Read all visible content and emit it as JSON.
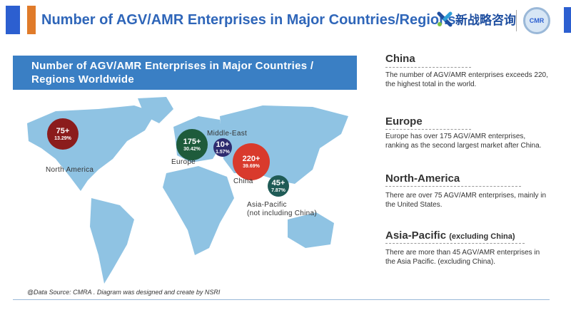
{
  "header": {
    "title": "Number of AGV/AMR Enterprises in Major Countries/Regions",
    "logo_text": "新战略咨询",
    "badge_text": "CMR"
  },
  "banner": {
    "line1": "Number of AGV/AMR Enterprises in Major Countries /",
    "line2": "Regions Worldwide"
  },
  "map": {
    "regions": [
      {
        "name": "North America",
        "count": "75+",
        "share": "13.29%",
        "color": "#8b1c1c"
      },
      {
        "name": "Europe",
        "count": "175+",
        "share": "30.42%",
        "color": "#1e5b3b"
      },
      {
        "name": "Middle-East",
        "count": "10+",
        "share": "1.57%",
        "color": "#2d2b6e"
      },
      {
        "name": "China",
        "count": "220+",
        "share": "39.69%",
        "color": "#d93a2c"
      },
      {
        "name": "Asia-Pacific",
        "name2": "(not including China)",
        "count": "45+",
        "share": "7.87%",
        "color": "#1f5b56"
      }
    ],
    "land_color": "#8fc3e3"
  },
  "sidebar": [
    {
      "heading": "China",
      "text": "The number of AGV/AMR enterprises exceeds 220, the highest total in the world."
    },
    {
      "heading": "Europe",
      "text": "Europe has over 175 AGV/AMR enterprises, ranking as the second largest market after China."
    },
    {
      "heading": "North-America",
      "text": "There are over 75 AGV/AMR enterprises, mainly in the United States."
    },
    {
      "heading": "Asia-Pacific",
      "heading_note": "(excluding China)",
      "text": "There are more than 45 AGV/AMR enterprises in the Asia Pacific. (excluding China)."
    }
  ],
  "footer": {
    "source": "@Data Source:  CMRA . Diagram was designed and create by NSRI"
  }
}
